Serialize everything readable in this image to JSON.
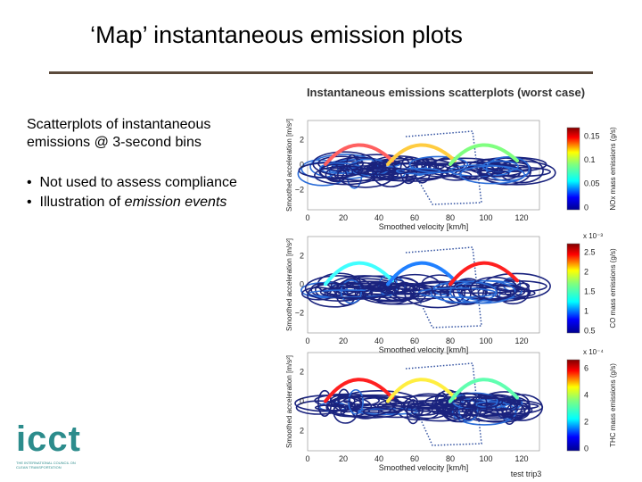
{
  "title": "‘Map’ instantaneous emission plots",
  "body": {
    "paragraph": "Scatterplots of instantaneous emissions @ 3-second bins",
    "bullets": [
      {
        "text": "Not used to assess compliance"
      },
      {
        "text": "Illustration of",
        "emphasis": "emission events"
      }
    ]
  },
  "figure": {
    "title": "Instantaneous emissions scatterplots (worst case)",
    "footer": "test trip3",
    "panels": [
      {
        "x_label": "Smoothed velocity [km/h]",
        "y_label": "Smoothed acceleration [m/s²]",
        "x_ticks": [
          "0",
          "20",
          "40",
          "60",
          "80",
          "100",
          "120"
        ],
        "y_ticks": [
          "2",
          "0",
          "−2"
        ],
        "colorbar_label": "NOx mass emissions (g/s)",
        "colorbar_ticks": [
          "0.15",
          "0.1",
          "0.05",
          "0"
        ]
      },
      {
        "x_label": "Smoothed velocity [km/h]",
        "y_label": "Smoothed acceleration [m/s²]",
        "x_ticks": [
          "0",
          "20",
          "40",
          "60",
          "80",
          "100",
          "120"
        ],
        "y_ticks": [
          "2",
          "0",
          "−2"
        ],
        "colorbar_exponent": "x 10⁻³",
        "colorbar_label": "CO mass emissions (g/s)",
        "colorbar_ticks": [
          "2.5",
          "2",
          "1.5",
          "1",
          "0.5"
        ]
      },
      {
        "x_label": "Smoothed velocity [km/h]",
        "y_label": "Smoothed acceleration [m/s²]",
        "x_ticks": [
          "0",
          "20",
          "40",
          "60",
          "80",
          "100",
          "120"
        ],
        "y_ticks": [
          "2",
          "0",
          "2"
        ],
        "colorbar_exponent": "x 10⁻⁴",
        "colorbar_label": "THC mass emissions (g/s)",
        "colorbar_ticks": [
          "6",
          "4",
          "2",
          "0"
        ]
      }
    ]
  },
  "logo": {
    "name": "icct",
    "tagline": "THE INTERNATIONAL COUNCIL ON CLEAN TRANSPORTATION"
  }
}
